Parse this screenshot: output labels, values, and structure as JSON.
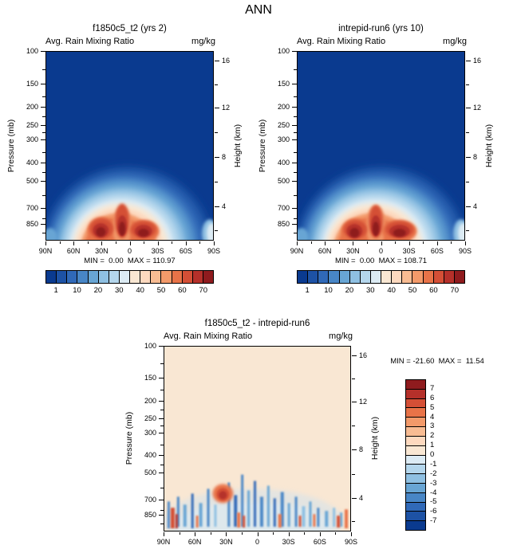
{
  "title": "ANN",
  "axes": {
    "ylabel": "Pressure (mb)",
    "ylabel_right": "Height (km)",
    "pressure_ticks": [
      "100",
      "150",
      "200",
      "250",
      "300",
      "400",
      "500",
      "700",
      "850"
    ],
    "height_ticks": [
      "16",
      "12",
      "8",
      "4"
    ],
    "lat_ticks": [
      "90N",
      "60N",
      "30N",
      "0",
      "30S",
      "60S",
      "90S"
    ]
  },
  "colorbar": {
    "labels": [
      "1",
      "10",
      "20",
      "30",
      "40",
      "50",
      "60",
      "70"
    ],
    "colors": [
      "#0a3a8f",
      "#1d52a5",
      "#3069b8",
      "#4886c6",
      "#68a5d4",
      "#8fc0e2",
      "#b4d6ec",
      "#dcebf4",
      "#f9e7d3",
      "#fdd9bf",
      "#f8bc93",
      "#f39a6a",
      "#e87348",
      "#d44f36",
      "#b5302a",
      "#8f1b1e"
    ]
  },
  "diff_colorbar": {
    "labels": [
      "7",
      "6",
      "5",
      "4",
      "3",
      "2",
      "1",
      "0",
      "-1",
      "-2",
      "-3",
      "-4",
      "-5",
      "-6",
      "-7"
    ],
    "colors": [
      "#8f1b1e",
      "#b5302a",
      "#d44f36",
      "#e87348",
      "#f39a6a",
      "#f8bc93",
      "#fdd9bf",
      "#f9e7d3",
      "#dcebf4",
      "#b4d6ec",
      "#8fc0e2",
      "#68a5d4",
      "#4886c6",
      "#3069b8",
      "#1d52a5",
      "#0a3a8f"
    ]
  },
  "panels": [
    {
      "title": "f1850c5_t2 (yrs 2)",
      "subtitle": "Avg. Rain Mixing Ratio",
      "units": "mg/kg",
      "stats": "MIN =  0.00  MAX = 110.97"
    },
    {
      "title": "intrepid-run6 (yrs 10)",
      "subtitle": "Avg. Rain Mixing Ratio",
      "units": "mg/kg",
      "stats": "MIN =  0.00  MAX = 108.71"
    },
    {
      "title": "f1850c5_t2 - intrepid-run6",
      "subtitle": "Avg. Rain Mixing Ratio",
      "units": "mg/kg",
      "stats": "MIN = -21.60  MAX =  11.54"
    }
  ],
  "chart_data": [
    {
      "type": "contour",
      "panel": "f1850c5_t2 (yrs 2)",
      "variable": "Avg. Rain Mixing Ratio",
      "units": "mg/kg",
      "x": "latitude",
      "xticks": [
        "90N",
        "60N",
        "30N",
        "0",
        "30S",
        "60S",
        "90S"
      ],
      "y": "pressure_mb",
      "yticks": [
        100,
        150,
        200,
        250,
        300,
        400,
        500,
        700,
        850
      ],
      "y_scale": "log",
      "y_range": [
        100,
        1000
      ],
      "y2": "height_km",
      "y2ticks": [
        16,
        12,
        8,
        4
      ],
      "levels": [
        1,
        5,
        10,
        15,
        20,
        25,
        30,
        35,
        40,
        45,
        50,
        55,
        60,
        65,
        70
      ],
      "min": 0.0,
      "max": 110.97,
      "description": "Rain mixing ratio near zero (dark blue) above ~450 mb everywhere; values rise below 500 mb between ~60N and ~60S, with maxima above 70 mg/kg near 700-850 mb at roughly 25N, 5N and 15S; a small enhanced patch hugs the 90S edge near the surface."
    },
    {
      "type": "contour",
      "panel": "intrepid-run6 (yrs 10)",
      "variable": "Avg. Rain Mixing Ratio",
      "units": "mg/kg",
      "x": "latitude",
      "xticks": [
        "90N",
        "60N",
        "30N",
        "0",
        "30S",
        "60S",
        "90S"
      ],
      "y": "pressure_mb",
      "yticks": [
        100,
        150,
        200,
        250,
        300,
        400,
        500,
        700,
        850
      ],
      "y_scale": "log",
      "y_range": [
        100,
        1000
      ],
      "y2": "height_km",
      "y2ticks": [
        16,
        12,
        8,
        4
      ],
      "levels": [
        1,
        5,
        10,
        15,
        20,
        25,
        30,
        35,
        40,
        45,
        50,
        55,
        60,
        65,
        70
      ],
      "min": 0.0,
      "max": 108.71,
      "description": "Same structure as the first case: low-level tropical maxima above 70 mg/kg near 700-850 mb around 25N, 5N and 10-25S (slightly broader to the south), near zero aloft."
    },
    {
      "type": "contour-diff",
      "panel": "f1850c5_t2 - intrepid-run6",
      "variable": "Avg. Rain Mixing Ratio",
      "units": "mg/kg",
      "x": "latitude",
      "xticks": [
        "90N",
        "60N",
        "30N",
        "0",
        "30S",
        "60S",
        "90S"
      ],
      "y": "pressure_mb",
      "yticks": [
        100,
        150,
        200,
        250,
        300,
        400,
        500,
        700,
        850
      ],
      "y_scale": "log",
      "y_range": [
        100,
        1000
      ],
      "y2": "height_km",
      "y2ticks": [
        16,
        12,
        8,
        4
      ],
      "levels": [
        -7,
        -6,
        -5,
        -4,
        -3,
        -2,
        -1,
        0,
        1,
        2,
        3,
        4,
        5,
        6,
        7
      ],
      "min": -21.6,
      "max": 11.54,
      "description": "Differences confined below ~420 mb: narrow alternating positive (red) and negative (blue) vertical streaks between 60N and 75S; a prominent positive patch near 30N at 500-650 mb; mostly weak negative values elsewhere; near zero above 400 mb."
    }
  ]
}
